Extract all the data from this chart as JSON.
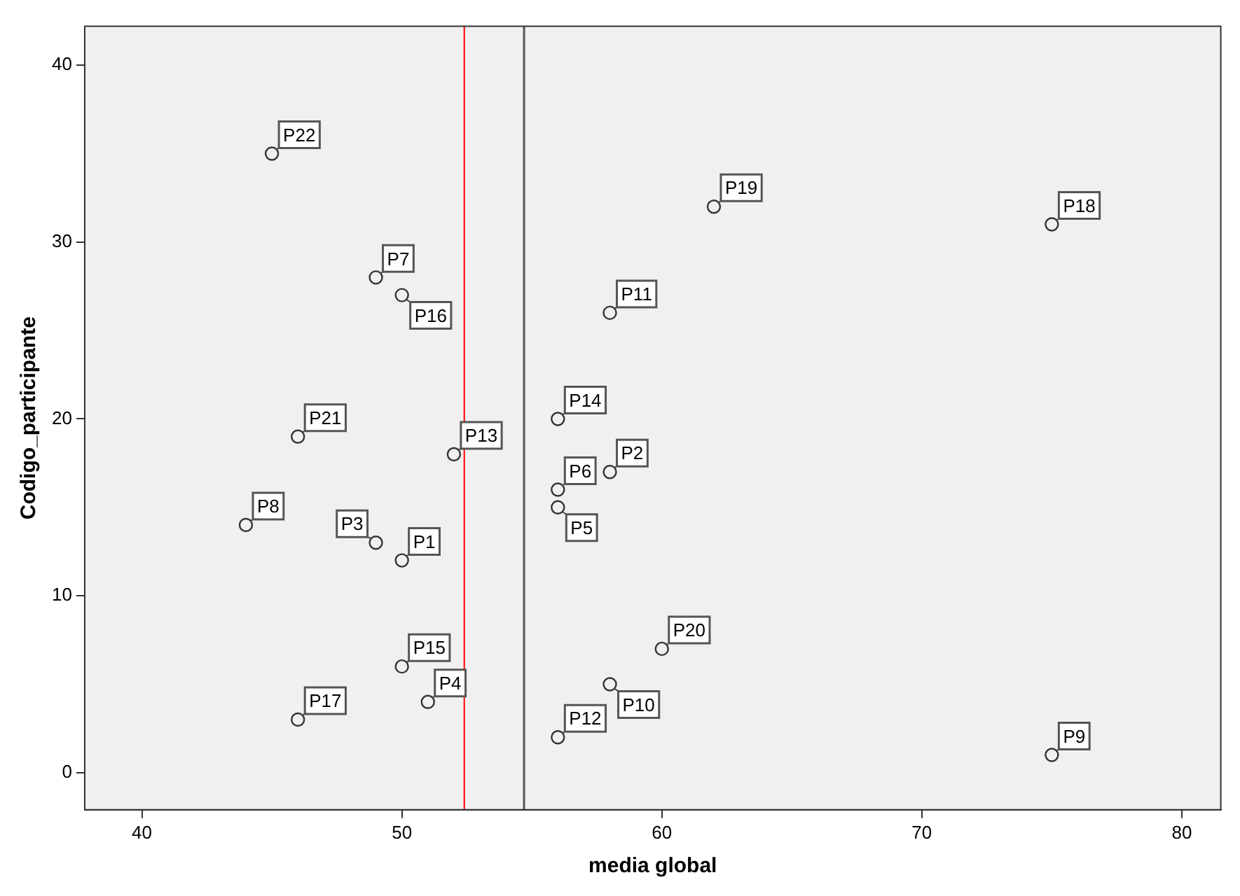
{
  "chart_data": {
    "type": "scatter",
    "xlabel": "media global",
    "ylabel": "Codigo_participante",
    "x": [
      50,
      58,
      49,
      51,
      56,
      56,
      49,
      44,
      75,
      58,
      58,
      56,
      52,
      56,
      50,
      50,
      46,
      75,
      62,
      60,
      46,
      45
    ],
    "series": [
      {
        "color": "#333333",
        "values": [
          12,
          17,
          13,
          4,
          15,
          16,
          28,
          14,
          1,
          5,
          26,
          2,
          18,
          20,
          6,
          27,
          3,
          31,
          32,
          7,
          19,
          35
        ]
      }
    ],
    "annotations": [
      {
        "text": "P1",
        "x": 50,
        "y": 12
      },
      {
        "text": "P2",
        "x": 58,
        "y": 17
      },
      {
        "text": "P3",
        "x": 49,
        "y": 13
      },
      {
        "text": "P4",
        "x": 51,
        "y": 4
      },
      {
        "text": "P5",
        "x": 56,
        "y": 15
      },
      {
        "text": "P6",
        "x": 56,
        "y": 16
      },
      {
        "text": "P7",
        "x": 49,
        "y": 28
      },
      {
        "text": "P8",
        "x": 44,
        "y": 14
      },
      {
        "text": "P9",
        "x": 75,
        "y": 1
      },
      {
        "text": "P10",
        "x": 58,
        "y": 5
      },
      {
        "text": "P11",
        "x": 58,
        "y": 26
      },
      {
        "text": "P12",
        "x": 56,
        "y": 2
      },
      {
        "text": "P13",
        "x": 52,
        "y": 18
      },
      {
        "text": "P14",
        "x": 56,
        "y": 20
      },
      {
        "text": "P15",
        "x": 50,
        "y": 6
      },
      {
        "text": "P16",
        "x": 50,
        "y": 27
      },
      {
        "text": "P17",
        "x": 46,
        "y": 3
      },
      {
        "text": "P18",
        "x": 75,
        "y": 31
      },
      {
        "text": "P19",
        "x": 62,
        "y": 32
      },
      {
        "text": "P20",
        "x": 60,
        "y": 7
      },
      {
        "text": "P21",
        "x": 46,
        "y": 19
      },
      {
        "text": "P22",
        "x": 45,
        "y": 35
      }
    ],
    "ref_lines": [
      {
        "axis": "x",
        "value": 52.4,
        "color": "#ff0000"
      },
      {
        "axis": "x",
        "value": 54.7,
        "color": "#555555"
      }
    ],
    "xlim": [
      37.8,
      81.5
    ],
    "ylim": [
      -2.1,
      42.2
    ],
    "xticks": [
      40,
      50,
      60,
      70,
      80
    ],
    "yticks": [
      0,
      10,
      20,
      30,
      40
    ],
    "grid": false,
    "legend": false,
    "marker": "circle"
  }
}
